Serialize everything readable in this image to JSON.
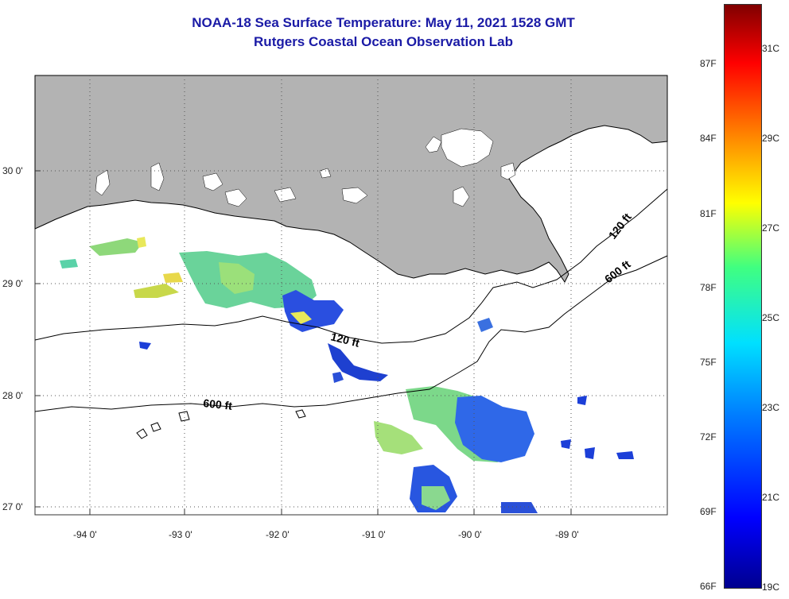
{
  "title": {
    "line1": "NOAA-18 Sea Surface Temperature:  May 11, 2021 1528 GMT",
    "line2": "Rutgers Coastal Ocean Observation Lab"
  },
  "axes": {
    "longitudes": [
      "-94 0'",
      "-93 0'",
      "-92 0'",
      "-91 0'",
      "-90 0'",
      "-89 0'"
    ],
    "latitudes": [
      "30 0'",
      "29 0'",
      "28 0'",
      "27 0'"
    ]
  },
  "contours": {
    "labels": [
      "120 ft",
      "600 ft",
      "120 ft",
      "600 ft"
    ]
  },
  "colorbar": {
    "fahrenheit": [
      "87F",
      "84F",
      "81F",
      "78F",
      "75F",
      "72F",
      "69F",
      "66F"
    ],
    "celsius": [
      "31C",
      "29C",
      "27C",
      "25C",
      "23C",
      "21C",
      "19C"
    ]
  },
  "colors": {
    "land": "#b3b3b3",
    "title": "#1a1aa6",
    "warm": "#ffff00",
    "cool": "#0000ff"
  }
}
